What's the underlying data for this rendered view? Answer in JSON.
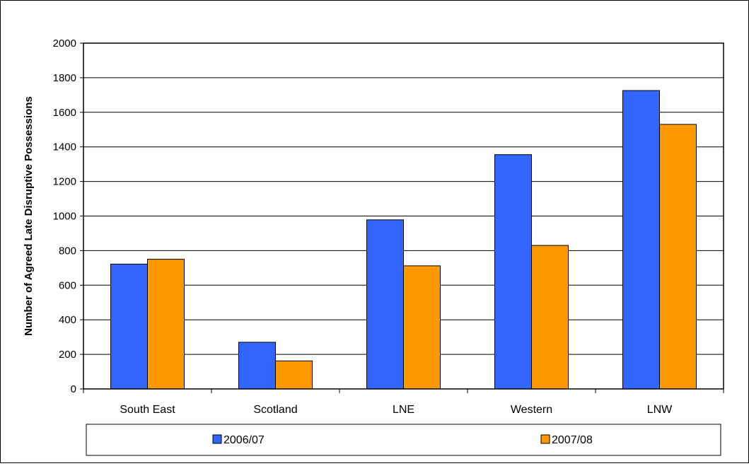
{
  "chart_data": {
    "type": "bar",
    "categories": [
      "South East",
      "Scotland",
      "LNE",
      "Western",
      "LNW"
    ],
    "series": [
      {
        "name": "2006/07",
        "values": [
          722,
          270,
          978,
          1355,
          1726
        ],
        "color": "#3366ff"
      },
      {
        "name": "2007/08",
        "values": [
          750,
          162,
          712,
          830,
          1530
        ],
        "color": "#ff9900"
      }
    ],
    "ylabel": "Number of Agreed Late Disruptive Possessions",
    "xlabel": "",
    "ylim": [
      0,
      2000
    ],
    "yticks": [
      "0",
      "200",
      "400",
      "600",
      "800",
      "1000",
      "1200",
      "1400",
      "1600",
      "1800",
      "2000"
    ],
    "grid": true,
    "legend": "bottom"
  }
}
